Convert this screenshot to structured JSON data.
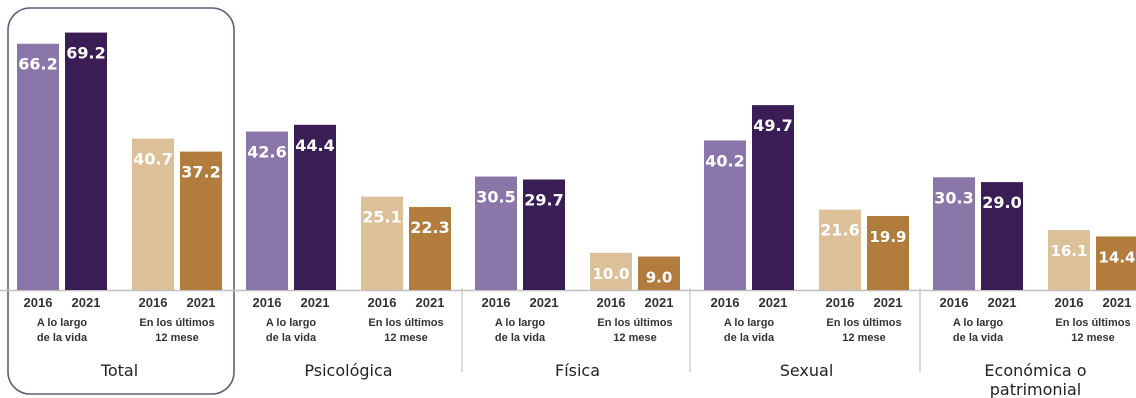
{
  "chart_data": {
    "type": "bar",
    "colors": {
      "vida_2016": "#8b76aa",
      "vida_2021": "#3b1d56",
      "doce_2016": "#dcc09a",
      "doce_2021": "#b17c3c",
      "axis": "#bfbfbf",
      "frame": "#6b5a78"
    },
    "groups": [
      {
        "category": "Total",
        "periods": [
          {
            "label": "A lo largo de la vida",
            "years": [
              "2016",
              "2021"
            ],
            "values": [
              66.2,
              69.2
            ]
          },
          {
            "label": "En los últimos 12 mese",
            "years": [
              "2016",
              "2021"
            ],
            "values": [
              40.7,
              37.2
            ]
          }
        ]
      },
      {
        "category": "Psicológica",
        "periods": [
          {
            "label": "A lo largo de la vida",
            "years": [
              "2016",
              "2021"
            ],
            "values": [
              42.6,
              44.4
            ]
          },
          {
            "label": "En los últimos 12 mese",
            "years": [
              "2016",
              "2021"
            ],
            "values": [
              25.1,
              22.3
            ]
          }
        ]
      },
      {
        "category": "Física",
        "periods": [
          {
            "label": "A lo largo de la vida",
            "years": [
              "2016",
              "2021"
            ],
            "values": [
              30.5,
              29.7
            ]
          },
          {
            "label": "En los últimos 12 mese",
            "years": [
              "2016",
              "2021"
            ],
            "values": [
              10.0,
              9.0
            ]
          }
        ]
      },
      {
        "category": "Sexual",
        "periods": [
          {
            "label": "A lo largo de la vida",
            "years": [
              "2016",
              "2021"
            ],
            "values": [
              40.2,
              49.7
            ]
          },
          {
            "label": "En los últimos 12 mese",
            "years": [
              "2016",
              "2021"
            ],
            "values": [
              21.6,
              19.9
            ]
          }
        ]
      },
      {
        "category": "Económica o patrimonial",
        "periods": [
          {
            "label": "A lo largo de la vida",
            "years": [
              "2016",
              "2021"
            ],
            "values": [
              30.3,
              29.0
            ]
          },
          {
            "label": "En los últimos 12 mese",
            "years": [
              "2016",
              "2021"
            ],
            "values": [
              16.1,
              14.4
            ]
          }
        ]
      }
    ],
    "ylim": [
      0,
      70
    ],
    "grid": false,
    "legend": "none"
  }
}
